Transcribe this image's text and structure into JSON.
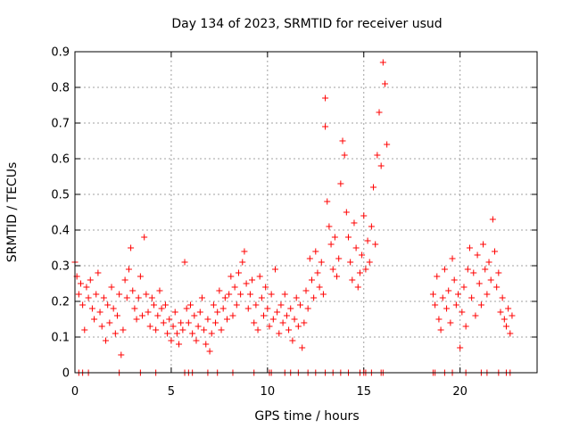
{
  "chart_data": {
    "type": "scatter",
    "title": "Day 134 of 2023, SRMTID for receiver usud",
    "xlabel": "GPS time / hours",
    "ylabel": "SRMTID / TECUs",
    "xlim": [
      0,
      24
    ],
    "ylim": [
      0,
      0.9
    ],
    "xticks": [
      0,
      5,
      10,
      15,
      20
    ],
    "yticks": [
      0,
      0.1,
      0.2,
      0.3,
      0.4,
      0.5,
      0.6,
      0.7,
      0.8,
      0.9
    ],
    "xtick_labels": [
      "0",
      "5",
      "10",
      "15",
      "20"
    ],
    "ytick_labels": [
      "0",
      "0.1",
      "0.2",
      "0.3",
      "0.4",
      "0.5",
      "0.6",
      "0.7",
      "0.8",
      "0.9"
    ],
    "grid": true,
    "marker": "plus",
    "color": "#ff0000",
    "series": [
      {
        "name": "SRMTID",
        "x": [
          0.0,
          0.1,
          0.2,
          0.3,
          0.4,
          0.5,
          0.6,
          0.7,
          0.8,
          0.9,
          1.0,
          1.1,
          1.2,
          1.3,
          1.4,
          1.5,
          1.6,
          1.7,
          1.8,
          1.9,
          2.0,
          2.1,
          2.2,
          2.3,
          2.4,
          2.5,
          2.6,
          2.7,
          2.8,
          2.9,
          3.0,
          3.1,
          3.2,
          3.3,
          3.4,
          3.5,
          3.6,
          3.7,
          3.8,
          3.9,
          4.0,
          4.1,
          4.2,
          4.3,
          4.4,
          4.5,
          4.6,
          4.7,
          4.8,
          4.9,
          5.0,
          5.1,
          5.2,
          5.3,
          5.4,
          5.5,
          5.6,
          5.7,
          5.8,
          5.9,
          6.0,
          6.1,
          6.2,
          6.3,
          6.4,
          6.5,
          6.6,
          6.7,
          6.8,
          6.9,
          7.0,
          7.1,
          7.2,
          7.3,
          7.4,
          7.5,
          7.6,
          7.7,
          7.8,
          7.9,
          8.0,
          8.1,
          8.2,
          8.3,
          8.4,
          8.5,
          8.6,
          8.7,
          8.8,
          8.9,
          9.0,
          9.1,
          9.2,
          9.3,
          9.4,
          9.5,
          9.6,
          9.7,
          9.8,
          9.9,
          10.0,
          10.1,
          10.2,
          10.3,
          10.4,
          10.5,
          10.6,
          10.7,
          10.8,
          10.9,
          11.0,
          11.1,
          11.2,
          11.3,
          11.4,
          11.5,
          11.6,
          11.7,
          11.8,
          11.9,
          12.0,
          12.1,
          12.2,
          12.3,
          12.4,
          12.5,
          12.6,
          12.7,
          12.8,
          12.9,
          13.0,
          13.0,
          13.1,
          13.2,
          13.3,
          13.4,
          13.5,
          13.6,
          13.7,
          13.8,
          13.9,
          14.0,
          14.1,
          14.2,
          14.3,
          14.4,
          14.5,
          14.6,
          14.7,
          14.8,
          14.9,
          15.0,
          15.1,
          15.2,
          15.3,
          15.4,
          15.5,
          15.6,
          15.7,
          15.8,
          15.9,
          16.0,
          16.1,
          16.2,
          18.6,
          18.7,
          18.8,
          18.9,
          19.0,
          19.1,
          19.2,
          19.3,
          19.4,
          19.5,
          19.6,
          19.7,
          19.8,
          19.9,
          20.0,
          20.1,
          20.2,
          20.3,
          20.4,
          20.5,
          20.6,
          20.7,
          20.8,
          20.9,
          21.0,
          21.1,
          21.2,
          21.3,
          21.4,
          21.5,
          21.6,
          21.7,
          21.8,
          21.9,
          22.0,
          22.1,
          22.2,
          22.3,
          22.4,
          22.5,
          22.6,
          22.7
        ],
        "y": [
          0.31,
          0.27,
          0.22,
          0.25,
          0.19,
          0.12,
          0.24,
          0.21,
          0.26,
          0.18,
          0.15,
          0.22,
          0.28,
          0.17,
          0.13,
          0.21,
          0.09,
          0.19,
          0.14,
          0.24,
          0.18,
          0.11,
          0.16,
          0.22,
          0.05,
          0.12,
          0.26,
          0.21,
          0.29,
          0.35,
          0.23,
          0.18,
          0.15,
          0.21,
          0.27,
          0.16,
          0.38,
          0.22,
          0.17,
          0.13,
          0.21,
          0.19,
          0.12,
          0.16,
          0.23,
          0.18,
          0.14,
          0.19,
          0.11,
          0.15,
          0.09,
          0.13,
          0.17,
          0.11,
          0.08,
          0.14,
          0.12,
          0.31,
          0.18,
          0.14,
          0.19,
          0.11,
          0.16,
          0.09,
          0.13,
          0.17,
          0.21,
          0.12,
          0.08,
          0.15,
          0.06,
          0.11,
          0.19,
          0.14,
          0.17,
          0.23,
          0.12,
          0.18,
          0.21,
          0.15,
          0.22,
          0.27,
          0.16,
          0.24,
          0.19,
          0.28,
          0.22,
          0.31,
          0.34,
          0.25,
          0.18,
          0.22,
          0.26,
          0.14,
          0.19,
          0.12,
          0.27,
          0.21,
          0.16,
          0.24,
          0.18,
          0.13,
          0.22,
          0.15,
          0.29,
          0.17,
          0.11,
          0.19,
          0.14,
          0.22,
          0.16,
          0.12,
          0.18,
          0.09,
          0.15,
          0.21,
          0.13,
          0.19,
          0.07,
          0.14,
          0.23,
          0.18,
          0.32,
          0.26,
          0.21,
          0.34,
          0.28,
          0.24,
          0.31,
          0.22,
          0.77,
          0.69,
          0.48,
          0.41,
          0.36,
          0.29,
          0.38,
          0.27,
          0.32,
          0.53,
          0.65,
          0.61,
          0.45,
          0.38,
          0.31,
          0.26,
          0.42,
          0.35,
          0.24,
          0.28,
          0.33,
          0.44,
          0.29,
          0.37,
          0.31,
          0.41,
          0.52,
          0.36,
          0.61,
          0.73,
          0.58,
          0.87,
          0.81,
          0.64,
          0.22,
          0.19,
          0.27,
          0.15,
          0.12,
          0.21,
          0.29,
          0.18,
          0.23,
          0.14,
          0.32,
          0.26,
          0.19,
          0.22,
          0.07,
          0.17,
          0.24,
          0.13,
          0.29,
          0.35,
          0.21,
          0.28,
          0.16,
          0.33,
          0.25,
          0.19,
          0.36,
          0.29,
          0.22,
          0.31,
          0.26,
          0.43,
          0.34,
          0.24,
          0.28,
          0.17,
          0.21,
          0.15,
          0.13,
          0.18,
          0.11,
          0.16
        ]
      }
    ],
    "zero_markers_x": [
      0.2,
      0.4,
      0.7,
      2.3,
      3.4,
      4.2,
      5.7,
      5.9,
      6.1,
      6.9,
      7.4,
      8.2,
      9.3,
      10.1,
      10.2,
      10.9,
      11.2,
      11.6,
      12.1,
      12.5,
      13.0,
      13.4,
      13.8,
      14.2,
      14.8,
      15.0,
      15.1,
      15.4,
      15.9,
      16.0,
      18.6,
      18.7,
      19.2,
      19.6,
      20.3,
      21.1,
      21.4,
      22.0,
      22.4,
      22.6
    ]
  }
}
